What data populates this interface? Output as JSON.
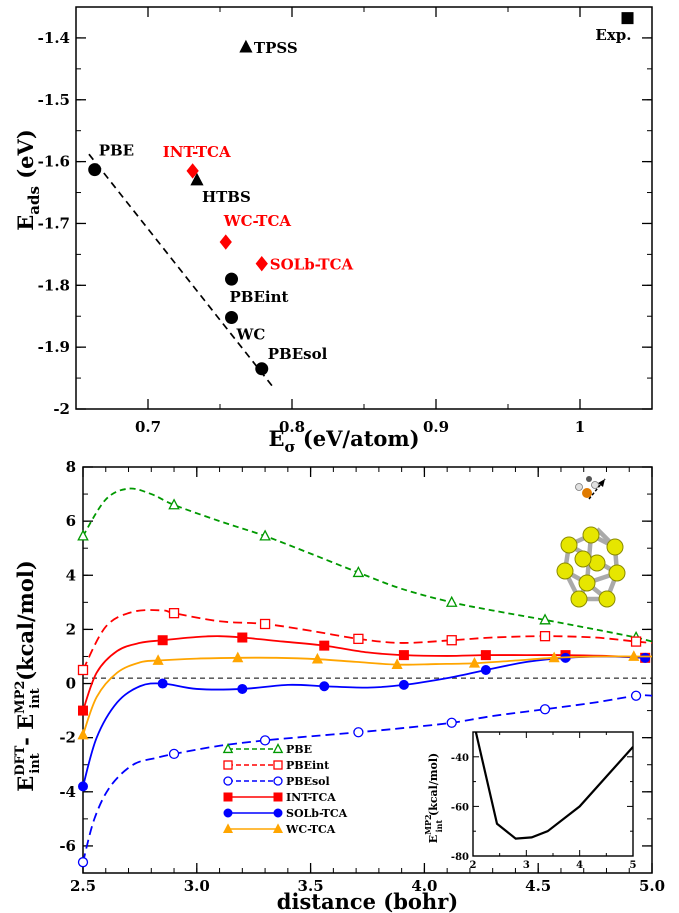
{
  "chart_data": [
    {
      "type": "scatter",
      "xlabel": "E",
      "xlabel_sub": "σ",
      "xlabel_unit": " (eV/atom)",
      "ylabel": "E",
      "ylabel_sub": "ads",
      "ylabel_unit": " (eV)",
      "xlim": [
        0.65,
        1.05
      ],
      "ylim": [
        -2.0,
        -1.35
      ],
      "xticks": [
        0.7,
        0.8,
        0.9,
        1.0
      ],
      "xtick_labels": [
        "0.7",
        "0.8",
        "0.9",
        "1"
      ],
      "yticks": [
        -2.0,
        -1.9,
        -1.8,
        -1.7,
        -1.6,
        -1.5,
        -1.4
      ],
      "ytick_labels": [
        "-2",
        "-1.9",
        "-1.8",
        "-1.7",
        "-1.6",
        "-1.5",
        "-1.4"
      ],
      "points": [
        {
          "label": "PBE",
          "x": 0.663,
          "y": -1.613,
          "marker": "circle",
          "color": "#000000",
          "label_anchor": "above-right"
        },
        {
          "label": "PBEint",
          "x": 0.758,
          "y": -1.79,
          "marker": "circle",
          "color": "#000000",
          "label_anchor": "below-right"
        },
        {
          "label": "WC",
          "x": 0.758,
          "y": -1.852,
          "marker": "circle",
          "color": "#000000",
          "label_anchor": "below-right"
        },
        {
          "label": "PBEsol",
          "x": 0.779,
          "y": -1.935,
          "marker": "circle",
          "color": "#000000",
          "label_anchor": "above-right"
        },
        {
          "label": "TPSS",
          "x": 0.768,
          "y": -1.415,
          "marker": "triangle",
          "color": "#000000",
          "label_anchor": "right"
        },
        {
          "label": "HTBS",
          "x": 0.734,
          "y": -1.63,
          "marker": "triangle",
          "color": "#000000",
          "label_anchor": "below-right"
        },
        {
          "label": "INT-TCA",
          "x": 0.731,
          "y": -1.615,
          "marker": "diamond",
          "color": "#ff0000",
          "label_anchor": "above"
        },
        {
          "label": "WC-TCA",
          "x": 0.754,
          "y": -1.73,
          "marker": "diamond",
          "color": "#ff0000",
          "label_anchor": "above-right"
        },
        {
          "label": "SOLb-TCA",
          "x": 0.779,
          "y": -1.765,
          "marker": "diamond",
          "color": "#ff0000",
          "label_anchor": "right"
        },
        {
          "label": "Exp.",
          "x": 1.033,
          "y": -1.368,
          "marker": "square",
          "color": "#000000",
          "label_anchor": "below-left"
        }
      ],
      "fit_line": {
        "x": [
          0.659,
          0.787
        ],
        "y": [
          -1.588,
          -1.965
        ],
        "style": "dashed",
        "color": "#000000"
      }
    },
    {
      "type": "line",
      "xlabel": "distance (bohr)",
      "ylabel": "E",
      "ylabel_parts": {
        "a": "int",
        "a_sup": "DFT",
        "mid": " - E",
        "b": "int",
        "b_sup": "MP2",
        "unit": " (kcal/mol)"
      },
      "xlim": [
        2.5,
        5.0
      ],
      "ylim": [
        -7,
        8
      ],
      "xticks": [
        2.5,
        3.0,
        3.5,
        4.0,
        4.5,
        5.0
      ],
      "xtick_labels": [
        "2.5",
        "3.0",
        "3.5",
        "4.0",
        "4.5",
        "5.0"
      ],
      "yticks": [
        -6,
        -4,
        -2,
        0,
        2,
        4,
        6,
        8
      ],
      "ytick_labels": [
        "-6",
        "-4",
        "-2",
        "0",
        "2",
        "4",
        "6",
        "8"
      ],
      "zero_line": 0.2,
      "series": [
        {
          "name": "PBE",
          "color": "#009900",
          "dash": "6,4",
          "marker": "triangle-open",
          "mx": [
            2.5,
            2.9,
            3.3,
            3.71,
            4.12,
            4.53,
            4.93
          ],
          "my": [
            5.45,
            6.6,
            5.45,
            4.1,
            3.0,
            2.35,
            1.7
          ],
          "cx": [
            2.5,
            2.6,
            2.7,
            2.8,
            2.9,
            3.1,
            3.3,
            3.5,
            3.71,
            3.9,
            4.12,
            4.3,
            4.53,
            4.75,
            4.93,
            5.0
          ],
          "cy": [
            5.45,
            6.8,
            7.2,
            7.0,
            6.6,
            6.0,
            5.45,
            4.8,
            4.1,
            3.5,
            3.0,
            2.7,
            2.35,
            2.0,
            1.7,
            1.55
          ]
        },
        {
          "name": "PBEint",
          "color": "#ff0000",
          "dash": "9,5",
          "marker": "square-open",
          "mx": [
            2.5,
            2.9,
            3.3,
            3.71,
            4.12,
            4.53,
            4.93
          ],
          "my": [
            0.5,
            2.6,
            2.2,
            1.65,
            1.6,
            1.75,
            1.55
          ],
          "cx": [
            2.5,
            2.6,
            2.72,
            2.85,
            2.9,
            3.1,
            3.3,
            3.5,
            3.71,
            3.9,
            4.12,
            4.3,
            4.53,
            4.75,
            4.93,
            5.0
          ],
          "cy": [
            0.5,
            2.1,
            2.65,
            2.7,
            2.6,
            2.3,
            2.2,
            1.95,
            1.65,
            1.5,
            1.6,
            1.7,
            1.75,
            1.7,
            1.55,
            1.5
          ]
        },
        {
          "name": "PBEsol",
          "color": "#0000ff",
          "dash": "9,5",
          "marker": "circle-open",
          "mx": [
            2.5,
            2.9,
            3.3,
            3.71,
            4.12,
            4.53,
            4.93
          ],
          "my": [
            -6.6,
            -2.6,
            -2.1,
            -1.8,
            -1.45,
            -0.95,
            -0.45
          ],
          "cx": [
            2.5,
            2.55,
            2.62,
            2.72,
            2.82,
            2.9,
            3.1,
            3.3,
            3.5,
            3.71,
            3.9,
            4.12,
            4.3,
            4.53,
            4.75,
            4.93,
            5.0
          ],
          "cy": [
            -6.6,
            -5.0,
            -3.8,
            -3.0,
            -2.75,
            -2.6,
            -2.3,
            -2.1,
            -1.95,
            -1.8,
            -1.65,
            -1.45,
            -1.2,
            -0.95,
            -0.7,
            -0.45,
            -0.45
          ]
        },
        {
          "name": "INT-TCA",
          "color": "#ff0000",
          "dash": "",
          "marker": "square-filled",
          "mx": [
            2.5,
            2.85,
            3.2,
            3.56,
            3.91,
            4.27,
            4.62,
            4.97
          ],
          "my": [
            -1.0,
            1.6,
            1.7,
            1.4,
            1.05,
            1.05,
            1.05,
            0.95
          ],
          "cx": [
            2.5,
            2.56,
            2.65,
            2.75,
            2.85,
            3.0,
            3.1,
            3.2,
            3.38,
            3.56,
            3.75,
            3.91,
            4.1,
            4.27,
            4.45,
            4.62,
            4.8,
            4.97
          ],
          "cy": [
            -1.0,
            0.4,
            1.2,
            1.5,
            1.6,
            1.72,
            1.75,
            1.7,
            1.55,
            1.4,
            1.15,
            1.05,
            1.02,
            1.05,
            1.05,
            1.05,
            1.02,
            0.95
          ]
        },
        {
          "name": "SOLb-TCA",
          "color": "#0000ff",
          "dash": "",
          "marker": "circle-filled",
          "mx": [
            2.5,
            2.85,
            3.2,
            3.56,
            3.91,
            4.27,
            4.62,
            4.97
          ],
          "my": [
            -3.8,
            0.0,
            -0.2,
            -0.1,
            -0.05,
            0.5,
            0.95,
            0.95
          ],
          "cx": [
            2.5,
            2.56,
            2.65,
            2.75,
            2.85,
            3.0,
            3.2,
            3.4,
            3.56,
            3.75,
            3.91,
            4.1,
            4.27,
            4.45,
            4.62,
            4.8,
            4.97
          ],
          "cy": [
            -3.8,
            -2.0,
            -0.7,
            -0.1,
            0.0,
            -0.2,
            -0.2,
            -0.05,
            -0.1,
            -0.15,
            -0.05,
            0.2,
            0.5,
            0.8,
            0.95,
            1.0,
            0.95
          ]
        },
        {
          "name": "WC-TCA",
          "color": "#ffa500",
          "dash": "",
          "marker": "triangle-filled",
          "mx": [
            2.5,
            2.83,
            3.18,
            3.53,
            3.88,
            4.22,
            4.57,
            4.92
          ],
          "my": [
            -1.9,
            0.85,
            0.95,
            0.9,
            0.7,
            0.75,
            0.95,
            1.0
          ],
          "cx": [
            2.5,
            2.56,
            2.65,
            2.75,
            2.83,
            3.0,
            3.18,
            3.35,
            3.53,
            3.7,
            3.88,
            4.05,
            4.22,
            4.4,
            4.57,
            4.75,
            4.92,
            5.0
          ],
          "cy": [
            -1.9,
            -0.5,
            0.4,
            0.78,
            0.85,
            0.92,
            0.95,
            0.95,
            0.9,
            0.8,
            0.7,
            0.72,
            0.75,
            0.85,
            0.95,
            1.0,
            1.0,
            1.0
          ]
        }
      ],
      "inset": {
        "type": "line",
        "ylabel": "E",
        "ylabel_sub": "int",
        "ylabel_sup": "MP2",
        "ylabel_unit": " (kcal/mol)",
        "xlim": [
          2,
          5
        ],
        "ylim": [
          -80,
          -30
        ],
        "xticks": [
          2,
          3,
          4,
          5
        ],
        "xtick_labels": [
          "2",
          "3",
          "4",
          "5"
        ],
        "yticks": [
          -80,
          -60,
          -40
        ],
        "ytick_labels": [
          "-80",
          "-60",
          "-40"
        ],
        "minor_xticks": [
          2.5,
          3.5,
          4.5
        ],
        "minor_yticks": [
          -70,
          -50
        ],
        "x": [
          2.0,
          2.45,
          2.8,
          3.1,
          3.4,
          4.0,
          4.5,
          5.0
        ],
        "y": [
          -25,
          -67,
          -73,
          -72.5,
          -70,
          -60,
          -48,
          -36
        ]
      }
    }
  ]
}
